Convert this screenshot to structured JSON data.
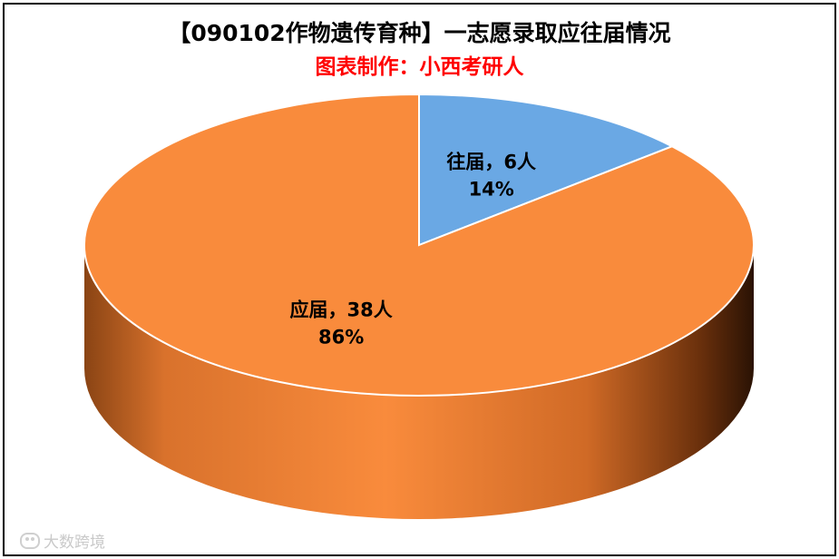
{
  "title": "【090102作物遗传育种】一志愿录取应往届情况",
  "subtitle": "图表制作：小西考研人",
  "watermark": "大数跨境",
  "colors": {
    "frame": "#000000",
    "title": "#000000",
    "subtitle": "#ff0000",
    "orange_top": "#f98b3c",
    "orange_side_light": "#e07a32",
    "orange_side_dark": "#5a2a0a",
    "blue_top": "#6aa8e4"
  },
  "chart_data": {
    "type": "pie",
    "style": "3d",
    "title": "【090102作物遗传育种】一志愿录取应往届情况",
    "subtitle": "图表制作：小西考研人",
    "slices": [
      {
        "name": "往届",
        "count": 6,
        "unit": "人",
        "percent": 14,
        "label": "往届，6人",
        "pct_label": "14%",
        "color": "#6aa8e4"
      },
      {
        "name": "应届",
        "count": 38,
        "unit": "人",
        "percent": 86,
        "label": "应届，38人",
        "pct_label": "86%",
        "color": "#f98b3c"
      }
    ]
  }
}
